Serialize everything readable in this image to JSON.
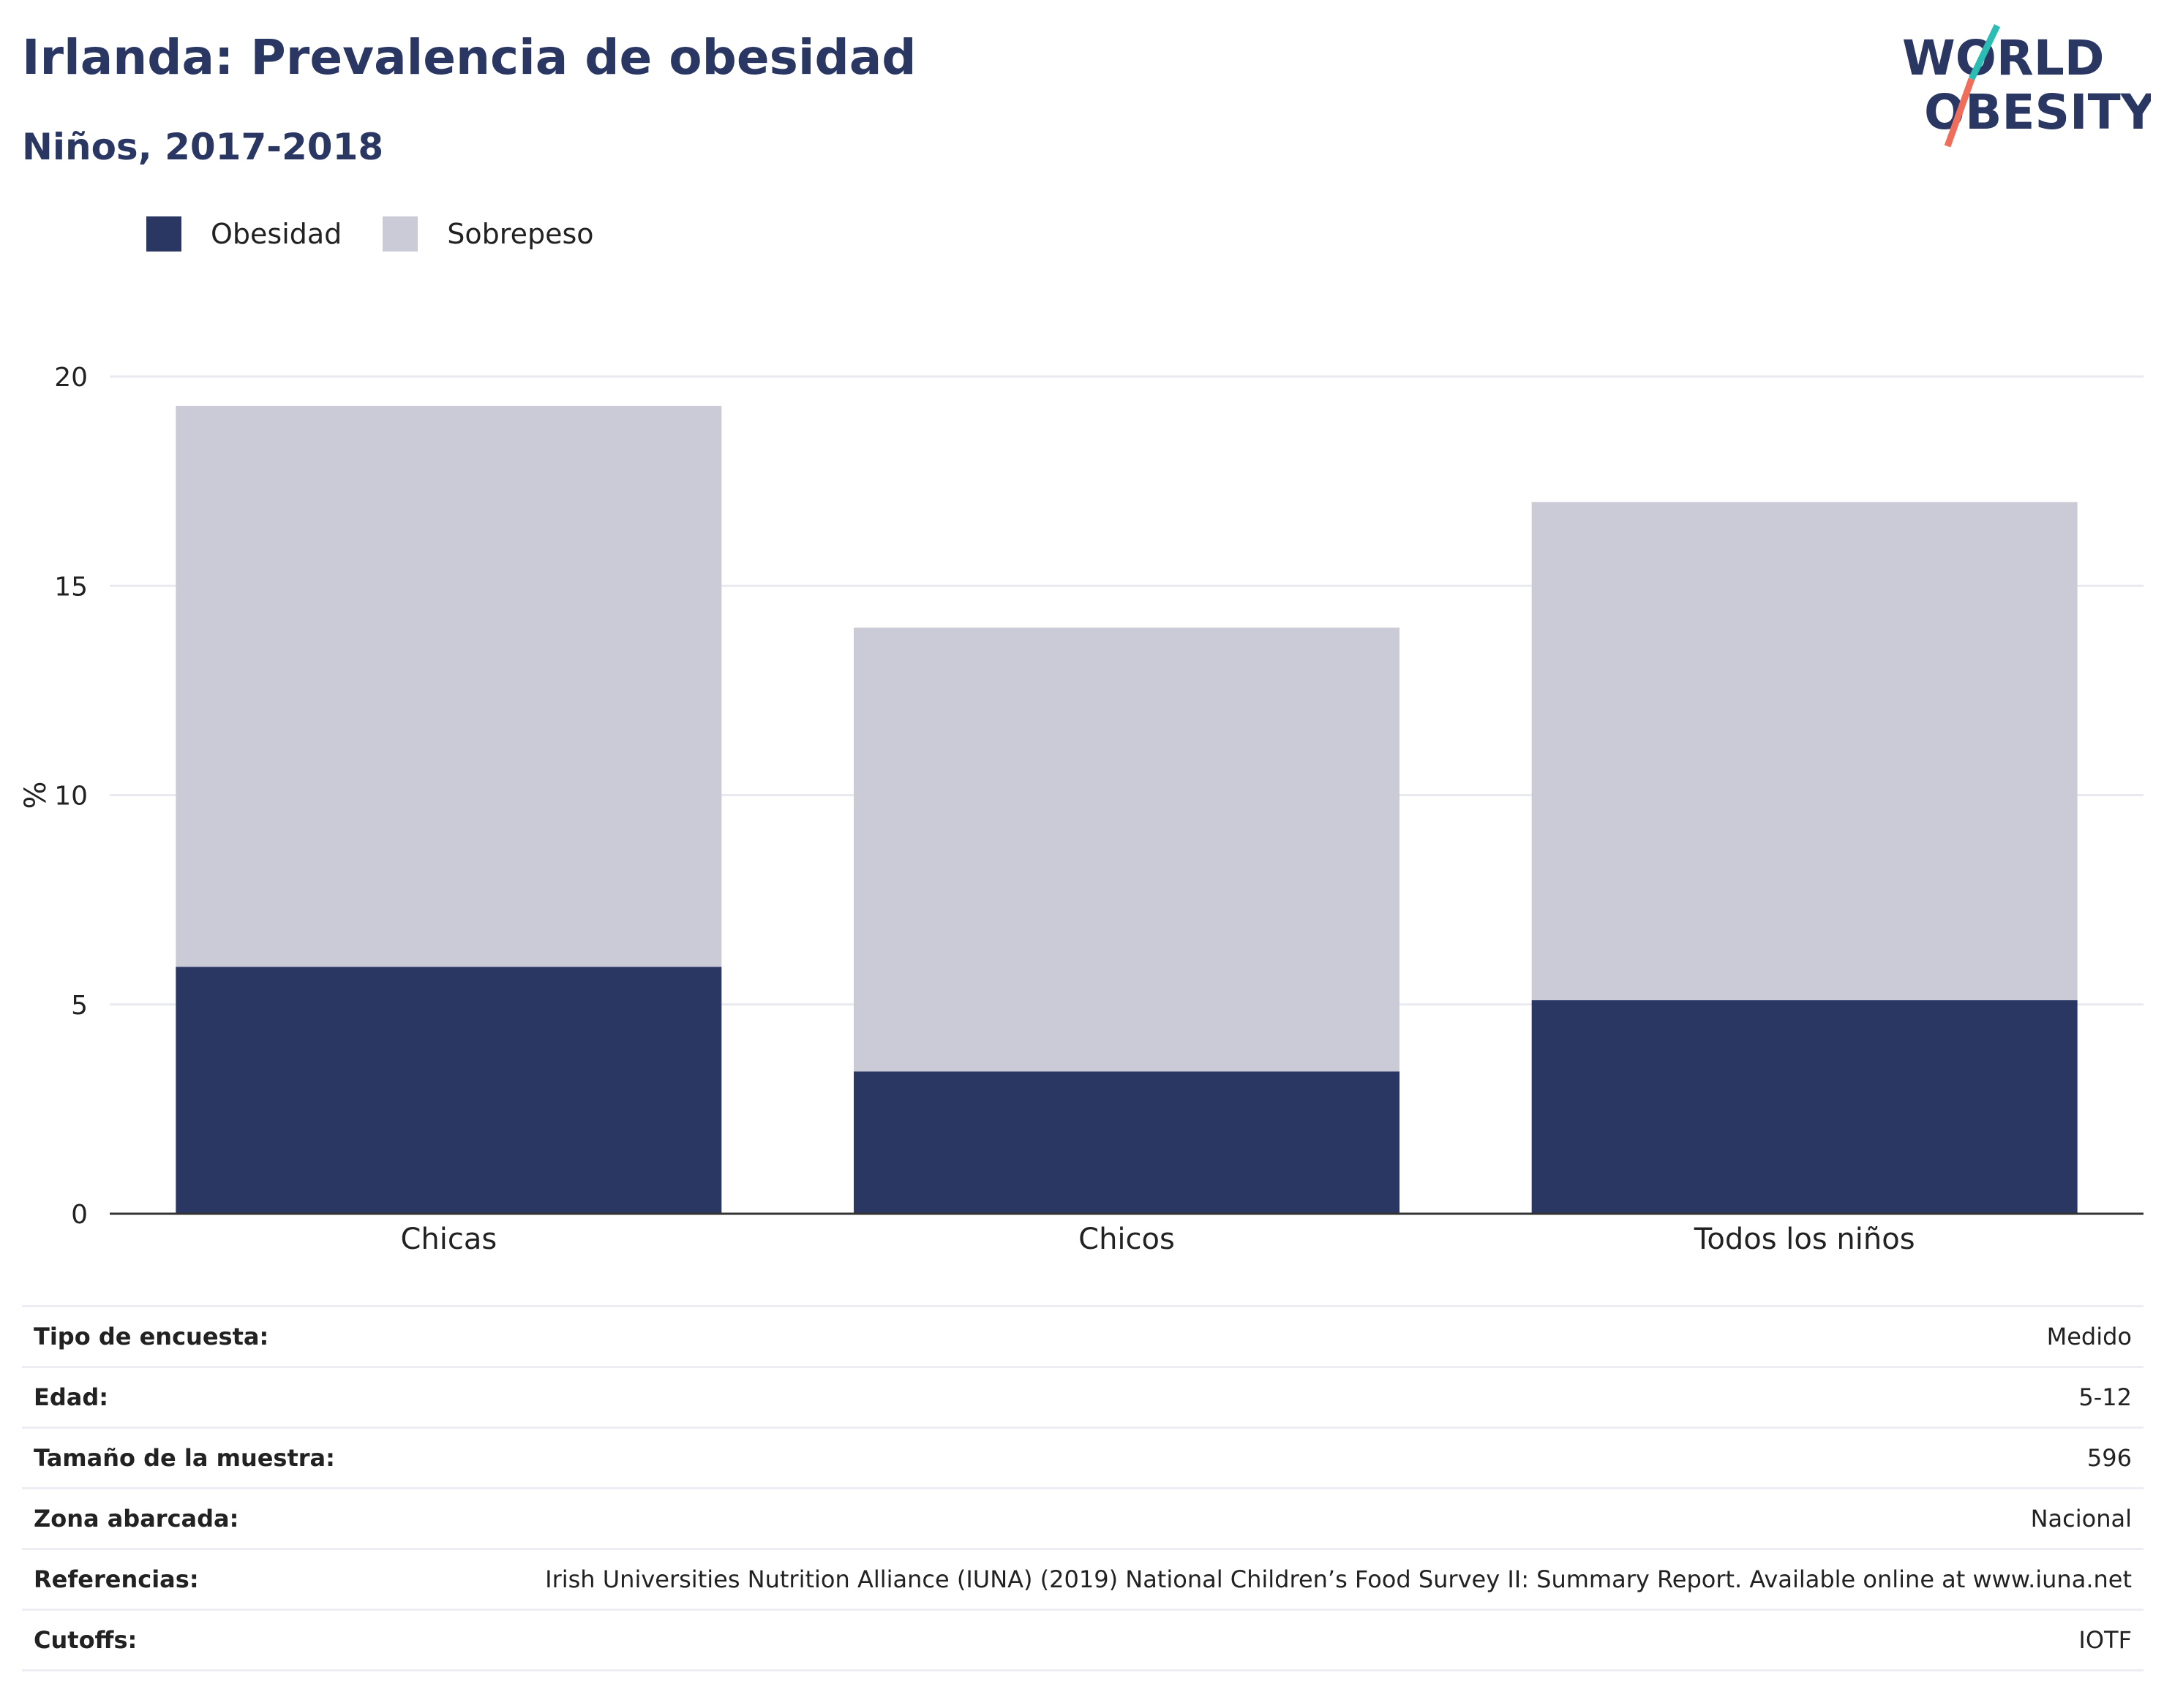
{
  "header": {
    "title": "Irlanda: Prevalencia de obesidad",
    "subtitle": "Niños, 2017-2018"
  },
  "logo": {
    "line1": "WORLD",
    "line2": "OBESITY"
  },
  "colors": {
    "obesity": "#2b3763",
    "overweight": "#cacbd7",
    "text": "#2b3763",
    "logo_teal": "#2bbdb3",
    "logo_coral": "#ee6e5b"
  },
  "chart_data": {
    "type": "bar",
    "stacked": true,
    "categories": [
      "Chicas",
      "Chicos",
      "Todos los niños"
    ],
    "series": [
      {
        "name": "Obesidad",
        "values": [
          5.9,
          3.4,
          5.1
        ],
        "color": "#2b3763"
      },
      {
        "name": "Sobrepeso",
        "values": [
          13.4,
          10.6,
          11.9
        ],
        "color": "#cacbd7"
      }
    ],
    "title": "",
    "xlabel": "",
    "ylabel": "%",
    "ylim": [
      0,
      20
    ],
    "yticks": [
      0,
      5,
      10,
      15,
      20
    ],
    "grid": true,
    "legend_position": "top-left"
  },
  "info": [
    {
      "key": "Tipo de encuesta:",
      "value": "Medido"
    },
    {
      "key": "Edad:",
      "value": "5-12"
    },
    {
      "key": "Tamaño de la muestra:",
      "value": "596"
    },
    {
      "key": "Zona abarcada:",
      "value": "Nacional"
    },
    {
      "key": "Referencias:",
      "value": "Irish Universities Nutrition Alliance (IUNA) (2019) National Children’s Food Survey II: Summary Report. Available online at www.iuna.net"
    },
    {
      "key": "Cutoffs:",
      "value": "IOTF"
    }
  ]
}
